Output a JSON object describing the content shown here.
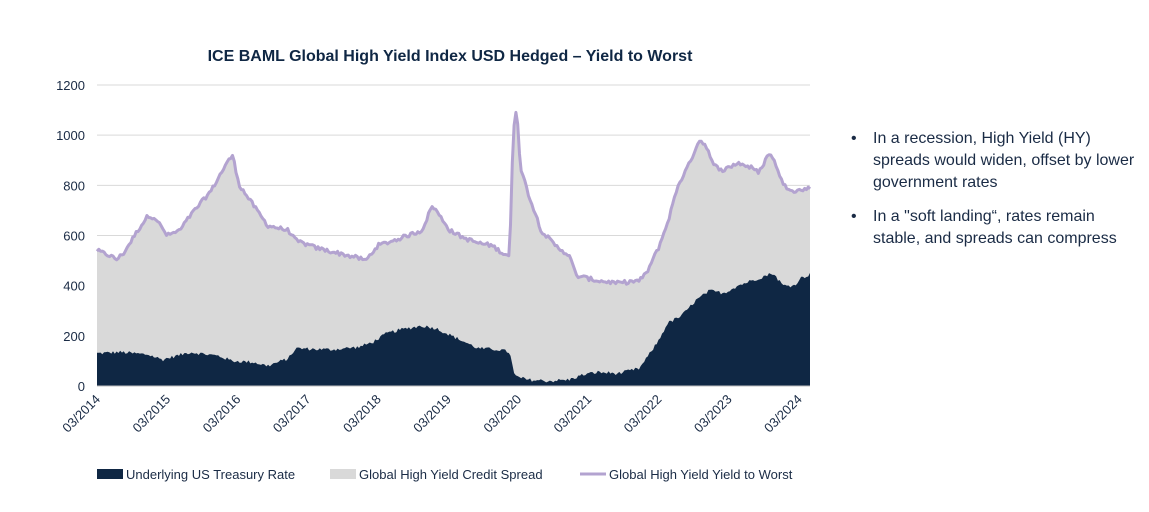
{
  "chart_data": {
    "type": "area",
    "title": "ICE BAML Global High Yield Index USD Hedged – Yield to Worst",
    "xlabel": "",
    "ylabel": "",
    "ylim": [
      0,
      1200
    ],
    "yticks": [
      0,
      200,
      400,
      600,
      800,
      1000,
      1200
    ],
    "xlim": [
      2014.17,
      2024.33
    ],
    "xticks": [
      {
        "x": 2014.17,
        "label": "03/2014"
      },
      {
        "x": 2015.17,
        "label": "03/2015"
      },
      {
        "x": 2016.17,
        "label": "03/2016"
      },
      {
        "x": 2017.17,
        "label": "03/2017"
      },
      {
        "x": 2018.17,
        "label": "03/2018"
      },
      {
        "x": 2019.17,
        "label": "03/2019"
      },
      {
        "x": 2020.17,
        "label": "03/2020"
      },
      {
        "x": 2021.17,
        "label": "03/2021"
      },
      {
        "x": 2022.17,
        "label": "03/2022"
      },
      {
        "x": 2023.17,
        "label": "03/2023"
      },
      {
        "x": 2024.17,
        "label": "03/2024"
      }
    ],
    "legend_position": "bottom",
    "grid": "horizontal",
    "series": [
      {
        "name": "Underlying US Treasury Rate",
        "kind": "area",
        "color": "#0f2744",
        "points": [
          [
            2014.17,
            130
          ],
          [
            2014.5,
            135
          ],
          [
            2014.9,
            125
          ],
          [
            2015.1,
            105
          ],
          [
            2015.5,
            135
          ],
          [
            2015.9,
            120
          ],
          [
            2016.1,
            100
          ],
          [
            2016.4,
            95
          ],
          [
            2016.6,
            80
          ],
          [
            2016.9,
            110
          ],
          [
            2017.0,
            150
          ],
          [
            2017.5,
            145
          ],
          [
            2017.9,
            155
          ],
          [
            2018.1,
            175
          ],
          [
            2018.3,
            210
          ],
          [
            2018.5,
            225
          ],
          [
            2018.8,
            240
          ],
          [
            2019.0,
            230
          ],
          [
            2019.3,
            190
          ],
          [
            2019.6,
            150
          ],
          [
            2019.9,
            145
          ],
          [
            2020.05,
            135
          ],
          [
            2020.12,
            40
          ],
          [
            2020.3,
            25
          ],
          [
            2020.6,
            20
          ],
          [
            2020.9,
            25
          ],
          [
            2021.1,
            45
          ],
          [
            2021.3,
            55
          ],
          [
            2021.6,
            50
          ],
          [
            2021.9,
            70
          ],
          [
            2022.0,
            110
          ],
          [
            2022.17,
            180
          ],
          [
            2022.3,
            250
          ],
          [
            2022.5,
            280
          ],
          [
            2022.7,
            340
          ],
          [
            2022.9,
            380
          ],
          [
            2023.1,
            370
          ],
          [
            2023.3,
            400
          ],
          [
            2023.6,
            430
          ],
          [
            2023.8,
            450
          ],
          [
            2023.95,
            400
          ],
          [
            2024.1,
            400
          ],
          [
            2024.2,
            430
          ],
          [
            2024.33,
            445
          ]
        ]
      },
      {
        "name": "Global High Yield Credit Spread",
        "kind": "stacked-area",
        "color": "#d9d9d9"
      },
      {
        "name": "Global High Yield Yield to Worst",
        "kind": "line",
        "color": "#b3a3d0",
        "points": [
          [
            2014.17,
            540
          ],
          [
            2014.35,
            520
          ],
          [
            2014.45,
            505
          ],
          [
            2014.55,
            530
          ],
          [
            2014.75,
            620
          ],
          [
            2014.9,
            680
          ],
          [
            2015.0,
            670
          ],
          [
            2015.17,
            600
          ],
          [
            2015.35,
            620
          ],
          [
            2015.5,
            680
          ],
          [
            2015.8,
            780
          ],
          [
            2016.0,
            880
          ],
          [
            2016.1,
            920
          ],
          [
            2016.2,
            800
          ],
          [
            2016.4,
            720
          ],
          [
            2016.6,
            640
          ],
          [
            2016.9,
            620
          ],
          [
            2017.0,
            580
          ],
          [
            2017.3,
            550
          ],
          [
            2017.6,
            530
          ],
          [
            2017.9,
            510
          ],
          [
            2018.0,
            500
          ],
          [
            2018.17,
            560
          ],
          [
            2018.4,
            580
          ],
          [
            2018.6,
            600
          ],
          [
            2018.8,
            620
          ],
          [
            2018.95,
            720
          ],
          [
            2019.05,
            680
          ],
          [
            2019.2,
            620
          ],
          [
            2019.4,
            590
          ],
          [
            2019.6,
            570
          ],
          [
            2019.8,
            560
          ],
          [
            2019.95,
            530
          ],
          [
            2020.05,
            520
          ],
          [
            2020.1,
            1000
          ],
          [
            2020.15,
            1120
          ],
          [
            2020.2,
            880
          ],
          [
            2020.3,
            780
          ],
          [
            2020.5,
            620
          ],
          [
            2020.7,
            560
          ],
          [
            2020.9,
            520
          ],
          [
            2021.0,
            440
          ],
          [
            2021.3,
            420
          ],
          [
            2021.6,
            410
          ],
          [
            2021.9,
            420
          ],
          [
            2022.0,
            450
          ],
          [
            2022.17,
            550
          ],
          [
            2022.3,
            650
          ],
          [
            2022.45,
            800
          ],
          [
            2022.6,
            880
          ],
          [
            2022.75,
            980
          ],
          [
            2022.85,
            960
          ],
          [
            2022.95,
            880
          ],
          [
            2023.1,
            860
          ],
          [
            2023.3,
            890
          ],
          [
            2023.5,
            870
          ],
          [
            2023.6,
            850
          ],
          [
            2023.75,
            930
          ],
          [
            2023.85,
            880
          ],
          [
            2023.95,
            800
          ],
          [
            2024.1,
            780
          ],
          [
            2024.2,
            780
          ],
          [
            2024.33,
            790
          ]
        ]
      }
    ]
  },
  "notes": [
    "In a recession, High Yield (HY) spreads would widen, offset by lower government rates",
    "In a \"soft landing“, rates remain stable, and spreads can compress"
  ],
  "bullet_char": "•"
}
